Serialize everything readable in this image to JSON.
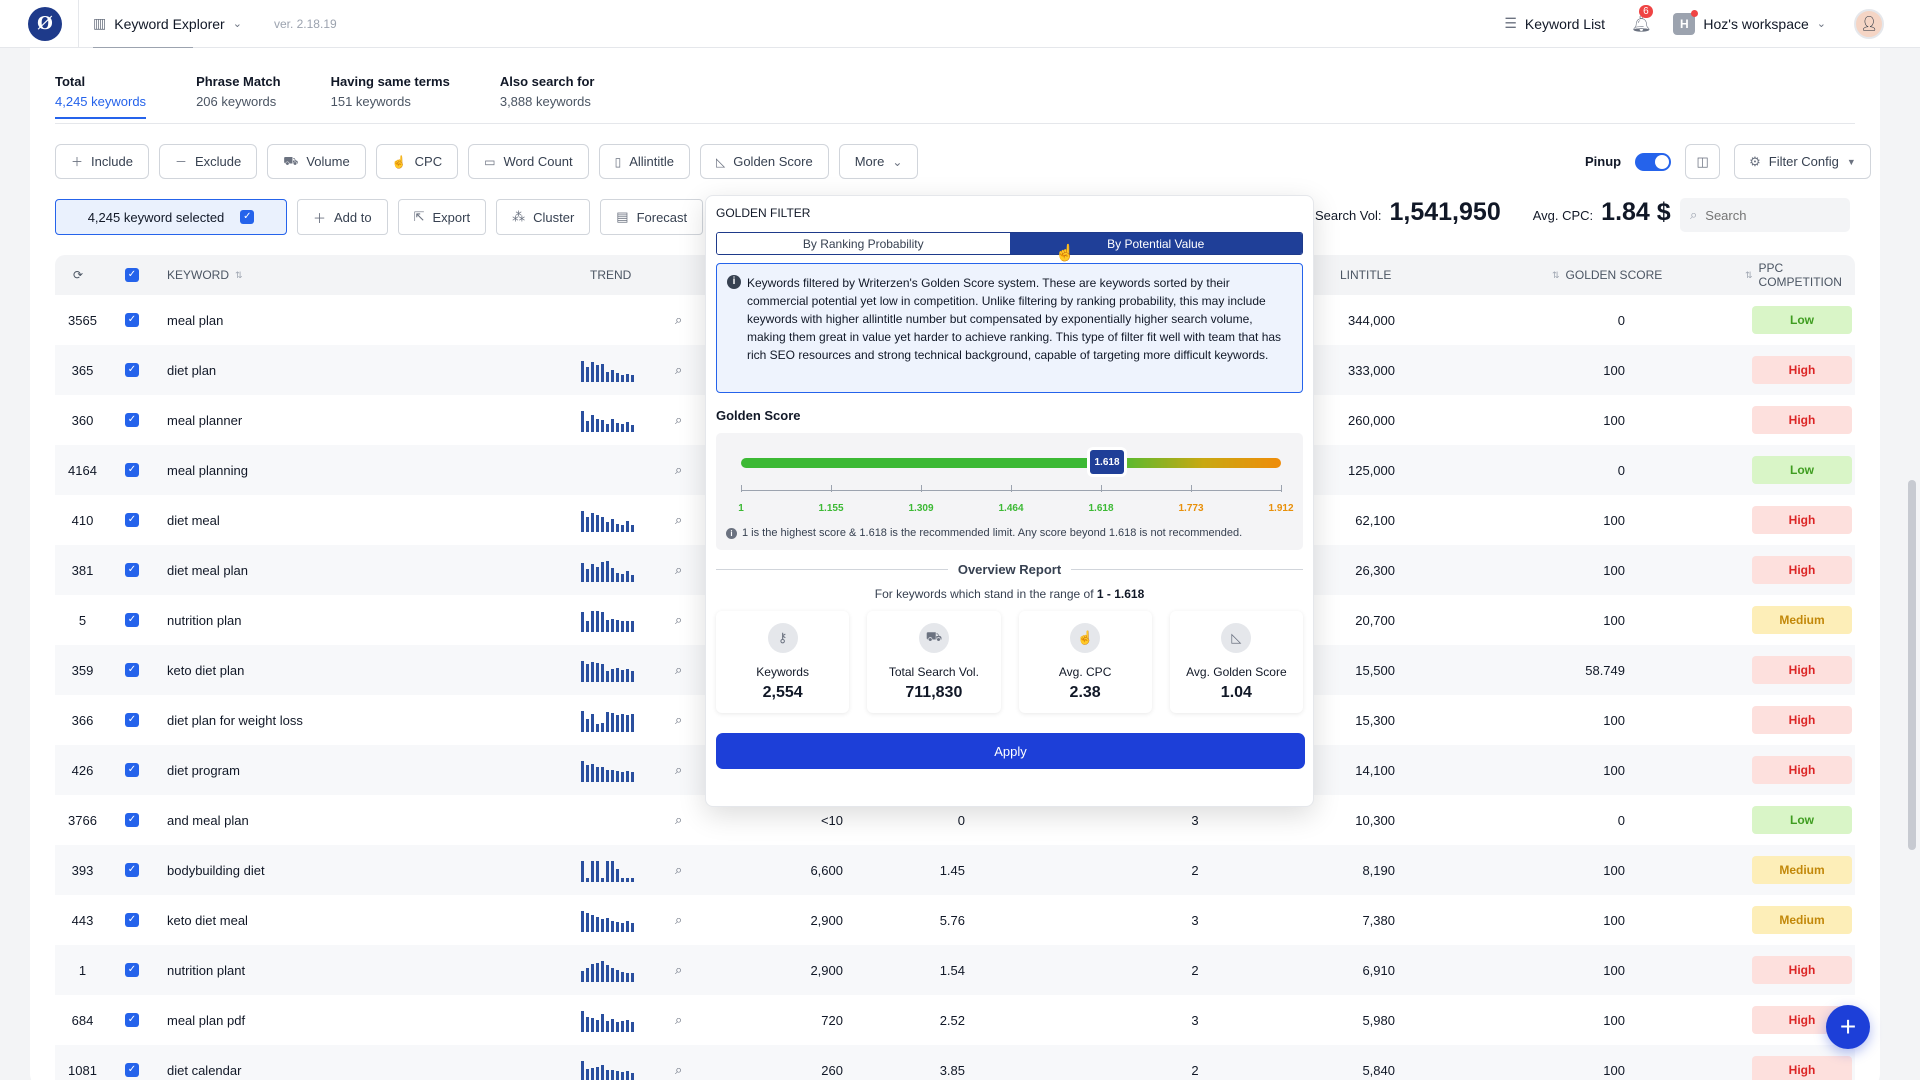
{
  "topbar": {
    "app_name": "Keyword Explorer",
    "version": "ver. 2.18.19",
    "keyword_list": "Keyword List",
    "notifications_count": "6",
    "workspace_initial": "H",
    "workspace_name": "Hoz's workspace"
  },
  "tabs": [
    {
      "title": "Total",
      "count": "4,245 keywords"
    },
    {
      "title": "Phrase Match",
      "count": "206 keywords"
    },
    {
      "title": "Having same terms",
      "count": "151 keywords"
    },
    {
      "title": "Also search for",
      "count": "3,888 keywords"
    }
  ],
  "filters": [
    "Include",
    "Exclude",
    "Volume",
    "CPC",
    "Word Count",
    "Allintitle",
    "Golden Score",
    "More"
  ],
  "pinup_label": "Pinup",
  "filter_config": "Filter Config",
  "selection": "4,245 keyword selected",
  "actions": [
    "Add to",
    "Export",
    "Cluster",
    "Forecast"
  ],
  "stats": {
    "search_vol_label": "Search Vol:",
    "search_vol": "1,541,950",
    "avg_cpc_label": "Avg. CPC:",
    "avg_cpc": "1.84 $"
  },
  "search_placeholder": "Search",
  "table": {
    "headers": {
      "keyword": "KEYWORD",
      "trend": "TREND",
      "allintitle": "LINTITLE",
      "golden_score": "GOLDEN SCORE",
      "ppc": "PPC COMPETITION"
    },
    "rows": [
      {
        "idx": "3565",
        "kw": "meal plan",
        "trend": [],
        "vol": "",
        "cpc": "",
        "wc": "",
        "all": "344,000",
        "gs": "0",
        "ppc": "Low"
      },
      {
        "idx": "365",
        "kw": "diet plan",
        "trend": [
          0.95,
          0.7,
          0.9,
          0.75,
          0.8,
          0.45,
          0.55,
          0.4,
          0.3,
          0.35,
          0.3
        ],
        "vol": "",
        "cpc": "",
        "wc": "",
        "all": "333,000",
        "gs": "100",
        "ppc": "High"
      },
      {
        "idx": "360",
        "kw": "meal planner",
        "trend": [
          0.95,
          0.5,
          0.75,
          0.6,
          0.55,
          0.35,
          0.6,
          0.4,
          0.35,
          0.45,
          0.3
        ],
        "vol": "",
        "cpc": "",
        "wc": "",
        "all": "260,000",
        "gs": "100",
        "ppc": "High"
      },
      {
        "idx": "4164",
        "kw": "meal planning",
        "trend": [],
        "vol": "",
        "cpc": "",
        "wc": "",
        "all": "125,000",
        "gs": "0",
        "ppc": "Low"
      },
      {
        "idx": "410",
        "kw": "diet meal",
        "trend": [
          0.95,
          0.7,
          0.85,
          0.75,
          0.7,
          0.45,
          0.6,
          0.35,
          0.3,
          0.5,
          0.3
        ],
        "vol": "",
        "cpc": "",
        "wc": "",
        "all": "62,100",
        "gs": "100",
        "ppc": "High"
      },
      {
        "idx": "381",
        "kw": "diet meal plan",
        "trend": [
          0.85,
          0.6,
          0.8,
          0.7,
          0.9,
          0.95,
          0.65,
          0.4,
          0.35,
          0.5,
          0.3
        ],
        "vol": "",
        "cpc": "",
        "wc": "",
        "all": "26,300",
        "gs": "100",
        "ppc": "High"
      },
      {
        "idx": "5",
        "kw": "nutrition plan",
        "trend": [
          0.9,
          0.5,
          0.95,
          0.95,
          0.9,
          0.55,
          0.6,
          0.55,
          0.5,
          0.5,
          0.5
        ],
        "vol": "",
        "cpc": "",
        "wc": "",
        "all": "20,700",
        "gs": "100",
        "ppc": "Medium"
      },
      {
        "idx": "359",
        "kw": "keto diet plan",
        "trend": [
          0.95,
          0.8,
          0.9,
          0.85,
          0.8,
          0.5,
          0.6,
          0.65,
          0.55,
          0.6,
          0.5
        ],
        "vol": "",
        "cpc": "",
        "wc": "",
        "all": "15,500",
        "gs": "58.749",
        "ppc": "High"
      },
      {
        "idx": "366",
        "kw": "diet plan for weight loss",
        "trend": [
          0.95,
          0.6,
          0.8,
          0.35,
          0.4,
          0.9,
          0.85,
          0.75,
          0.8,
          0.75,
          0.8
        ],
        "vol": "",
        "cpc": "",
        "wc": "",
        "all": "15,300",
        "gs": "100",
        "ppc": "High"
      },
      {
        "idx": "426",
        "kw": "diet program",
        "trend": [
          0.95,
          0.75,
          0.8,
          0.7,
          0.7,
          0.55,
          0.55,
          0.5,
          0.45,
          0.5,
          0.45
        ],
        "vol": "",
        "cpc": "",
        "wc": "",
        "all": "14,100",
        "gs": "100",
        "ppc": "High"
      },
      {
        "idx": "3766",
        "kw": "and meal plan",
        "trend": [],
        "vol": "<10",
        "cpc": "0",
        "wc": "3",
        "all": "10,300",
        "gs": "0",
        "ppc": "Low"
      },
      {
        "idx": "393",
        "kw": "bodybuilding diet",
        "trend": [
          0.95,
          0.2,
          0.95,
          0.95,
          0.2,
          0.95,
          0.95,
          0.6,
          0.2,
          0.2,
          0.2
        ],
        "vol": "6,600",
        "cpc": "1.45",
        "wc": "2",
        "all": "8,190",
        "gs": "100",
        "ppc": "Medium"
      },
      {
        "idx": "443",
        "kw": "keto diet meal",
        "trend": [
          0.95,
          0.85,
          0.75,
          0.7,
          0.6,
          0.65,
          0.5,
          0.45,
          0.4,
          0.5,
          0.4
        ],
        "vol": "2,900",
        "cpc": "5.76",
        "wc": "3",
        "all": "7,380",
        "gs": "100",
        "ppc": "Medium"
      },
      {
        "idx": "1",
        "kw": "nutrition plant",
        "trend": [
          0.5,
          0.65,
          0.8,
          0.85,
          0.95,
          0.75,
          0.65,
          0.55,
          0.45,
          0.4,
          0.4
        ],
        "vol": "2,900",
        "cpc": "1.54",
        "wc": "2",
        "all": "6,910",
        "gs": "100",
        "ppc": "High"
      },
      {
        "idx": "684",
        "kw": "meal plan pdf",
        "trend": [
          0.95,
          0.7,
          0.65,
          0.55,
          0.8,
          0.5,
          0.6,
          0.45,
          0.5,
          0.55,
          0.45
        ],
        "vol": "720",
        "cpc": "2.52",
        "wc": "3",
        "all": "5,980",
        "gs": "100",
        "ppc": "High"
      },
      {
        "idx": "1081",
        "kw": "diet calendar",
        "trend": [
          0.95,
          0.6,
          0.65,
          0.7,
          0.75,
          0.55,
          0.55,
          0.5,
          0.45,
          0.5,
          0.4
        ],
        "vol": "260",
        "cpc": "3.85",
        "wc": "2",
        "all": "5,840",
        "gs": "100",
        "ppc": "High"
      }
    ]
  },
  "popup": {
    "title": "GOLDEN FILTER",
    "tab_ranking": "By Ranking Probability",
    "tab_potential": "By Potential Value",
    "info": "Keywords filtered by Writerzen's Golden Score system. These are keywords sorted by their commercial potential yet low in competition. Unlike filtering by ranking probability, this may include keywords with higher allintitle number but compensated by exponentially higher search volume, making them great in value yet harder to achieve ranking. This type of filter fit well with team that has rich SEO resources and strong technical background, capable of targeting more difficult keywords.",
    "golden_score_label": "Golden Score",
    "slider_value": "1.618",
    "ticks": [
      {
        "v": "1",
        "color": "#3cb934"
      },
      {
        "v": "1.155",
        "color": "#3cb934"
      },
      {
        "v": "1.309",
        "color": "#3cb934"
      },
      {
        "v": "1.464",
        "color": "#3cb934"
      },
      {
        "v": "1.618",
        "color": "#3cb934"
      },
      {
        "v": "1.773",
        "color": "#e8900a"
      },
      {
        "v": "1.912",
        "color": "#e8900a"
      }
    ],
    "note": "1 is the highest score & 1.618 is the recommended limit. Any score beyond 1.618 is not recommended.",
    "overview_title": "Overview Report",
    "overview_sub": "For keywords which stand in the range of",
    "overview_range": "1 - 1.618",
    "cards": [
      {
        "label": "Keywords",
        "value": "2,554",
        "icon": "key-icon"
      },
      {
        "label": "Total Search Vol.",
        "value": "711,830",
        "icon": "volume-icon"
      },
      {
        "label": "Avg. CPC",
        "value": "2.38",
        "icon": "cpc-icon"
      },
      {
        "label": "Avg. Golden Score",
        "value": "1.04",
        "icon": "golden-score-icon"
      }
    ],
    "apply": "Apply"
  },
  "colors": {
    "accent": "#2563eb",
    "apply": "#1d3fd8",
    "segment_active": "#1f3f98"
  }
}
